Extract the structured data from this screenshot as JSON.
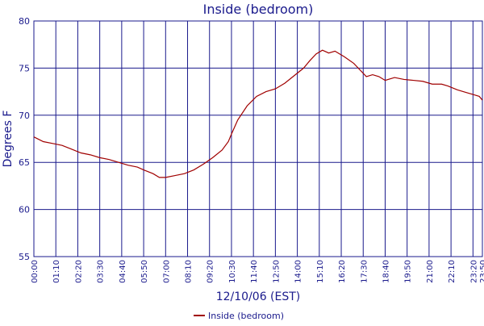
{
  "chart_data": {
    "type": "line",
    "title": "Inside (bedroom)",
    "x_label": "12/10/06 (EST)",
    "y_label": "Degrees F",
    "x": [
      0,
      30,
      60,
      90,
      120,
      150,
      180,
      210,
      240,
      270,
      300,
      330,
      350,
      380,
      400,
      420,
      450,
      480,
      510,
      540,
      570,
      600,
      620,
      630,
      650,
      680,
      710,
      740,
      770,
      800,
      830,
      860,
      880,
      900,
      920,
      940,
      960,
      990,
      1020,
      1040,
      1060,
      1080,
      1100,
      1120,
      1150,
      1180,
      1210,
      1240,
      1270,
      1300,
      1320,
      1350,
      1380,
      1400,
      1420,
      1430
    ],
    "series": [
      {
        "name": "Inside (bedroom)",
        "color": "#a00000",
        "values": [
          67.7,
          67.2,
          67.0,
          66.8,
          66.4,
          66.0,
          65.8,
          65.5,
          65.3,
          65.0,
          64.7,
          64.5,
          64.2,
          63.8,
          63.4,
          63.4,
          63.6,
          63.8,
          64.2,
          64.8,
          65.5,
          66.3,
          67.2,
          68.0,
          69.5,
          71.0,
          72.0,
          72.5,
          72.8,
          73.4,
          74.2,
          75.0,
          75.8,
          76.5,
          76.9,
          76.6,
          76.8,
          76.2,
          75.5,
          74.8,
          74.1,
          74.3,
          74.1,
          73.7,
          74.0,
          73.8,
          73.7,
          73.6,
          73.3,
          73.3,
          73.1,
          72.7,
          72.4,
          72.2,
          72.0,
          71.6
        ]
      }
    ],
    "xlim": [
      0,
      1430
    ],
    "xticks": [
      {
        "value": 0,
        "label": "00:00"
      },
      {
        "value": 70,
        "label": "01:10"
      },
      {
        "value": 140,
        "label": "02:20"
      },
      {
        "value": 210,
        "label": "03:30"
      },
      {
        "value": 280,
        "label": "04:40"
      },
      {
        "value": 350,
        "label": "05:50"
      },
      {
        "value": 420,
        "label": "07:00"
      },
      {
        "value": 490,
        "label": "08:10"
      },
      {
        "value": 560,
        "label": "09:20"
      },
      {
        "value": 630,
        "label": "10:30"
      },
      {
        "value": 700,
        "label": "11:40"
      },
      {
        "value": 770,
        "label": "12:50"
      },
      {
        "value": 840,
        "label": "14:00"
      },
      {
        "value": 910,
        "label": "15:10"
      },
      {
        "value": 980,
        "label": "16:20"
      },
      {
        "value": 1050,
        "label": "17:30"
      },
      {
        "value": 1120,
        "label": "18:40"
      },
      {
        "value": 1190,
        "label": "19:50"
      },
      {
        "value": 1260,
        "label": "21:00"
      },
      {
        "value": 1330,
        "label": "22:10"
      },
      {
        "value": 1400,
        "label": "23:20"
      },
      {
        "value": 1430,
        "label": "23:50"
      }
    ],
    "ylim": [
      55,
      80
    ],
    "yticks": [
      55,
      60,
      65,
      70,
      75,
      80
    ],
    "grid": true,
    "legend": "bottom"
  }
}
